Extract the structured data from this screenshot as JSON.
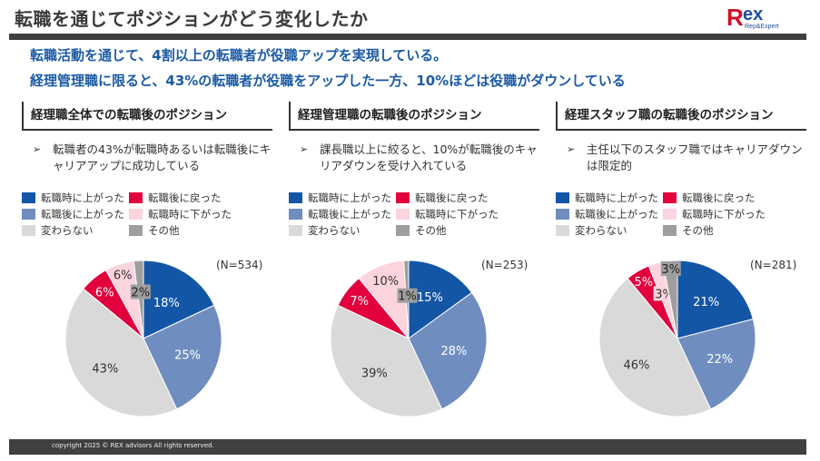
{
  "header": {
    "title": "転職を通じてポジションがどう変化したか",
    "logo_text": "Rex",
    "logo_subtext": "Rep&Expert"
  },
  "lead": [
    "転職活動を通じて、4割以上の転職者が役職アップを実現している。",
    "経理管理職に限ると、43%の転職者が役職をアップした一方、10%ほどは役職がダウンしている"
  ],
  "legend": [
    {
      "label": "転職時に上がった",
      "color": "#1456a6"
    },
    {
      "label": "転職後に上がった",
      "color": "#6f8dbf"
    },
    {
      "label": "変わらない",
      "color": "#d9d9d9"
    },
    {
      "label": "転職後に戻った",
      "color": "#e2003d"
    },
    {
      "label": "転職時に下がった",
      "color": "#fcd4dd"
    },
    {
      "label": "その他",
      "color": "#9e9e9e"
    }
  ],
  "sections": [
    {
      "heading": "経理職全体での転職後のポジション",
      "bullet": "転職者の43%が転職時あるいは転職後にキャリアアップに成功している"
    },
    {
      "heading": "経理管理職の転職後のポジション",
      "bullet": "課長職以上に絞ると、10%が転職後のキャリアダウンを受け入れている"
    },
    {
      "heading": "経理スタッフ職の転職後のポジション",
      "bullet": "主任以下のスタッフ職ではキャリアダウンは限定的"
    }
  ],
  "bullet_marker": "➢",
  "chart_data": [
    {
      "type": "pie",
      "title": "経理職全体での転職後のポジション",
      "n_label": "(N=534)",
      "categories": [
        "転職時に上がった",
        "転職後に上がった",
        "変わらない",
        "転職後に戻った",
        "転職時に下がった",
        "その他"
      ],
      "values": [
        18,
        25,
        43,
        6,
        6,
        2
      ],
      "labels": [
        "18%",
        "25%",
        "43%",
        "6%",
        "6%",
        "2%"
      ]
    },
    {
      "type": "pie",
      "title": "経理管理職の転職後のポジション",
      "n_label": "(N=253)",
      "categories": [
        "転職時に上がった",
        "転職後に上がった",
        "変わらない",
        "転職後に戻った",
        "転職時に下がった",
        "その他"
      ],
      "values": [
        15,
        28,
        39,
        7,
        10,
        1
      ],
      "labels": [
        "15%",
        "28%",
        "39%",
        "7%",
        "10%",
        "1%"
      ]
    },
    {
      "type": "pie",
      "title": "経理スタッフ職の転職後のポジション",
      "n_label": "(N=281)",
      "categories": [
        "転職時に上がった",
        "転職後に上がった",
        "変わらない",
        "転職後に戻った",
        "転職時に下がった",
        "その他"
      ],
      "values": [
        21,
        22,
        46,
        5,
        3,
        3
      ],
      "labels": [
        "21%",
        "22%",
        "46%",
        "5%",
        "3%",
        "3%"
      ]
    }
  ],
  "footer": {
    "copyright": "copyright 2025 © REX advisors All rights reserved."
  }
}
